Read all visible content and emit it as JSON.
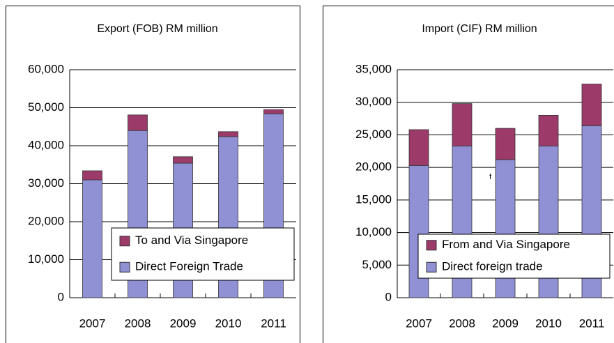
{
  "chart_data": [
    {
      "type": "bar",
      "stacked": true,
      "title": "Export (FOB) RM million",
      "categories": [
        "2007",
        "2008",
        "2009",
        "2010",
        "2011"
      ],
      "series": [
        {
          "name": "Direct Foreign Trade",
          "color": "#9090d4",
          "values": [
            31000,
            44000,
            35400,
            42400,
            48400
          ]
        },
        {
          "name": "To and Via Singapore",
          "color": "#9c3a6a",
          "values": [
            2400,
            4100,
            1700,
            1300,
            1100
          ]
        }
      ],
      "ylim": [
        0,
        60000
      ],
      "yticks": [
        0,
        {
          "value": 10000,
          "label": "10,000"
        },
        {
          "value": 20000,
          "label": "20,000"
        },
        {
          "value": 30000,
          "label": "30,000"
        },
        {
          "value": 40000,
          "label": "40,000"
        },
        {
          "value": 50000,
          "label": "50,000"
        },
        {
          "value": 60000,
          "label": "60,000"
        }
      ],
      "grid": true,
      "legend": "lower-right"
    },
    {
      "type": "bar",
      "stacked": true,
      "title": "Import (CIF) RM million",
      "categories": [
        "2007",
        "2008",
        "2009",
        "2010",
        "2011"
      ],
      "series": [
        {
          "name": "Direct foreign trade",
          "color": "#9090d4",
          "values": [
            20300,
            23300,
            21200,
            23300,
            26400
          ]
        },
        {
          "name": "From and Via Singapore",
          "color": "#9c3a6a",
          "values": [
            5500,
            6500,
            4800,
            4700,
            6400
          ]
        }
      ],
      "ylim": [
        0,
        35000
      ],
      "yticks": [
        0,
        {
          "value": 5000,
          "label": "5,000"
        },
        {
          "value": 10000,
          "label": "10,000"
        },
        {
          "value": 15000,
          "label": "15,000"
        },
        {
          "value": 20000,
          "label": "20,000"
        },
        {
          "value": 25000,
          "label": "25,000"
        },
        {
          "value": 30000,
          "label": "30,000"
        },
        {
          "value": 35000,
          "label": "35,000"
        }
      ],
      "grid": true,
      "legend": "lower-right",
      "annotation": "f"
    }
  ]
}
